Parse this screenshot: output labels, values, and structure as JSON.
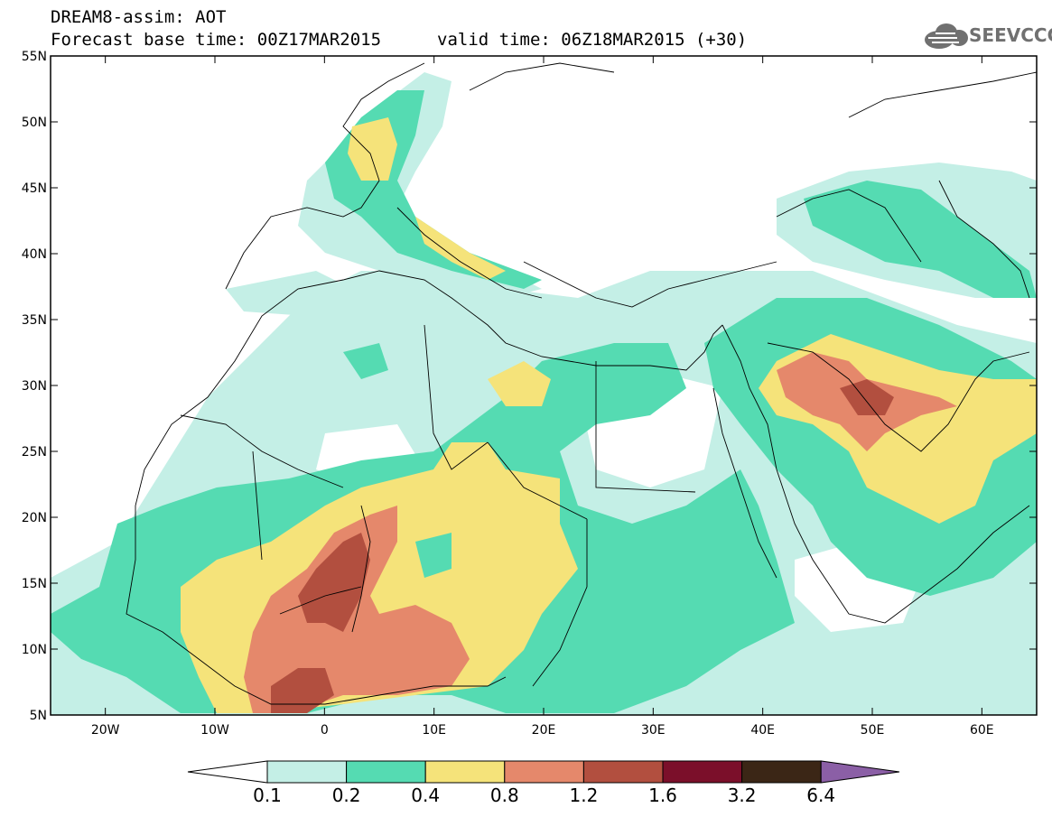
{
  "header": {
    "line1": "DREAM8-assim: AOT",
    "line2": "Forecast base time: 00Z17MAR2015",
    "line2b": "valid time: 06Z18MAR2015 (+30)"
  },
  "logo": {
    "text": "SEEVCCC",
    "icon": "cloud-icon"
  },
  "map": {
    "lat_labels": [
      "55N",
      "50N",
      "45N",
      "40N",
      "35N",
      "30N",
      "25N",
      "20N",
      "15N",
      "10N",
      "5N"
    ],
    "lon_labels": [
      "20W",
      "10W",
      "0",
      "10E",
      "20E",
      "30E",
      "40E",
      "50E",
      "60E"
    ],
    "lon_range": [
      -25,
      65
    ],
    "lat_range": [
      5,
      55
    ]
  },
  "colorbar": {
    "labels": [
      "0.1",
      "0.2",
      "0.4",
      "0.8",
      "1.2",
      "1.6",
      "3.2",
      "6.4"
    ],
    "colors": [
      "#ffffff",
      "#c4efe6",
      "#55dbb2",
      "#f5e37a",
      "#e5886b",
      "#b24f3f",
      "#7b0f2a",
      "#3b2616",
      "#8b5fa6"
    ]
  }
}
